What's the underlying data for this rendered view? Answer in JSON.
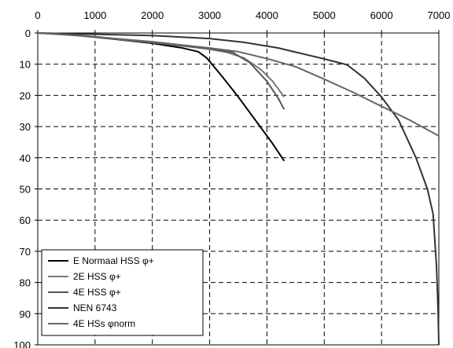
{
  "chart_data": {
    "type": "line",
    "title": "",
    "xlabel": "",
    "ylabel": "",
    "xlim": [
      0,
      7000
    ],
    "ylim": [
      0,
      100
    ],
    "x_axis_position": "top",
    "y_axis_inverted": true,
    "grid": "dashed",
    "x_ticks": [
      0,
      1000,
      2000,
      3000,
      4000,
      5000,
      6000,
      7000
    ],
    "y_ticks": [
      0,
      10,
      20,
      30,
      40,
      50,
      60,
      70,
      80,
      90,
      100
    ],
    "x_tick_labels": [
      "0",
      "1000",
      "2000",
      "3000",
      "4000",
      "5000",
      "6000",
      "7000"
    ],
    "y_tick_labels": [
      "0",
      "10",
      "20",
      "30",
      "40",
      "50",
      "60",
      "70",
      "80",
      "90",
      "100"
    ],
    "legend_position": "bottom-left",
    "series": [
      {
        "name": "E Normaal  HSS φ+",
        "color": "#000000",
        "points": [
          [
            0,
            0
          ],
          [
            500,
            0.5
          ],
          [
            1000,
            1.3
          ],
          [
            1500,
            2.3
          ],
          [
            2000,
            3.3
          ],
          [
            2500,
            4.7
          ],
          [
            2800,
            6.0
          ],
          [
            2950,
            8.0
          ],
          [
            3200,
            13.5
          ],
          [
            3500,
            20.5
          ],
          [
            3800,
            28.0
          ],
          [
            4100,
            35.5
          ],
          [
            4300,
            41.0
          ]
        ]
      },
      {
        "name": "2E HSS φ+",
        "color": "#7a7a7a",
        "points": [
          [
            0,
            0
          ],
          [
            500,
            0.4
          ],
          [
            1000,
            1.2
          ],
          [
            1500,
            2.2
          ],
          [
            2000,
            3.1
          ],
          [
            2500,
            4.1
          ],
          [
            3000,
            5.2
          ],
          [
            3300,
            6.2
          ],
          [
            3600,
            8.0
          ],
          [
            3900,
            11.8
          ],
          [
            4100,
            15.5
          ],
          [
            4300,
            20.5
          ]
        ]
      },
      {
        "name": "4E HSS φ+",
        "color": "#555555",
        "points": [
          [
            0,
            0
          ],
          [
            500,
            0.4
          ],
          [
            1000,
            1.2
          ],
          [
            1500,
            2.1
          ],
          [
            2000,
            3.0
          ],
          [
            2500,
            4.0
          ],
          [
            3000,
            5.0
          ],
          [
            3400,
            6.2
          ],
          [
            3700,
            9.5
          ],
          [
            4000,
            15.5
          ],
          [
            4200,
            21.0
          ],
          [
            4300,
            24.5
          ]
        ]
      },
      {
        "name": "NEN 6743",
        "color": "#333333",
        "points": [
          [
            0,
            0
          ],
          [
            1000,
            0.4
          ],
          [
            2000,
            0.8
          ],
          [
            3000,
            1.8
          ],
          [
            3600,
            3.0
          ],
          [
            4200,
            4.8
          ],
          [
            4700,
            7.0
          ],
          [
            5000,
            8.3
          ],
          [
            5400,
            10.2
          ],
          [
            5700,
            14.5
          ],
          [
            6000,
            20.5
          ],
          [
            6300,
            28.0
          ],
          [
            6600,
            40.0
          ],
          [
            6800,
            50.0
          ],
          [
            6900,
            58.0
          ],
          [
            6960,
            75.0
          ],
          [
            6985,
            88.0
          ],
          [
            7000,
            100.0
          ]
        ]
      },
      {
        "name": "4E HSs φnorm",
        "color": "#666666",
        "points": [
          [
            0,
            0
          ],
          [
            1000,
            1.2
          ],
          [
            2000,
            2.8
          ],
          [
            3000,
            4.8
          ],
          [
            3500,
            6.0
          ],
          [
            4000,
            8.2
          ],
          [
            4500,
            10.8
          ],
          [
            5000,
            14.8
          ],
          [
            5500,
            19.0
          ],
          [
            6000,
            23.5
          ],
          [
            6500,
            28.0
          ],
          [
            7000,
            33.0
          ]
        ]
      }
    ]
  }
}
